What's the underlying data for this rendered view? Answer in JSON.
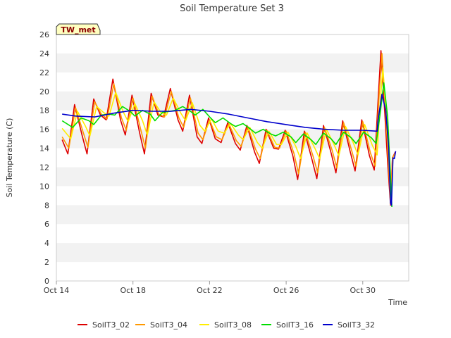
{
  "chart_data": {
    "type": "line",
    "title": "Soil Temperature Set 3",
    "xlabel": "Time",
    "ylabel": "Soil Temperature (C)",
    "station_label": "TW_met",
    "xlim": [
      0,
      18.4
    ],
    "ylim": [
      0,
      26
    ],
    "y_ticks": [
      0,
      2,
      4,
      6,
      8,
      10,
      12,
      14,
      16,
      18,
      20,
      22,
      24,
      26
    ],
    "x_ticks": [
      {
        "value": 0,
        "label": "Oct 14"
      },
      {
        "value": 4,
        "label": "Oct 18"
      },
      {
        "value": 8,
        "label": "Oct 22"
      },
      {
        "value": 12,
        "label": "Oct 26"
      },
      {
        "value": 16,
        "label": "Oct 30"
      }
    ],
    "grid": "alternating horizontal bands",
    "legend_position": "bottom",
    "series": [
      {
        "name": "SoilT3_02",
        "color": "#dd0000",
        "points": [
          [
            0.3,
            14.9
          ],
          [
            0.6,
            13.4
          ],
          [
            0.95,
            18.6
          ],
          [
            1.35,
            15.3
          ],
          [
            1.6,
            13.4
          ],
          [
            1.95,
            19.2
          ],
          [
            2.3,
            17.5
          ],
          [
            2.6,
            17.0
          ],
          [
            2.95,
            21.3
          ],
          [
            3.35,
            17.0
          ],
          [
            3.6,
            15.4
          ],
          [
            3.95,
            19.6
          ],
          [
            4.35,
            15.6
          ],
          [
            4.6,
            13.4
          ],
          [
            4.95,
            19.8
          ],
          [
            5.3,
            17.5
          ],
          [
            5.6,
            17.3
          ],
          [
            5.95,
            20.3
          ],
          [
            6.35,
            17.0
          ],
          [
            6.6,
            15.8
          ],
          [
            6.95,
            19.6
          ],
          [
            7.35,
            15.2
          ],
          [
            7.6,
            14.5
          ],
          [
            7.95,
            17.2
          ],
          [
            8.3,
            15.0
          ],
          [
            8.6,
            14.6
          ],
          [
            8.95,
            16.7
          ],
          [
            9.35,
            14.5
          ],
          [
            9.6,
            13.8
          ],
          [
            9.95,
            16.4
          ],
          [
            10.35,
            13.6
          ],
          [
            10.6,
            12.4
          ],
          [
            10.95,
            16.0
          ],
          [
            11.35,
            14.0
          ],
          [
            11.6,
            13.9
          ],
          [
            11.95,
            15.9
          ],
          [
            12.35,
            13.2
          ],
          [
            12.6,
            10.7
          ],
          [
            12.95,
            15.8
          ],
          [
            13.35,
            12.8
          ],
          [
            13.6,
            10.8
          ],
          [
            13.95,
            16.4
          ],
          [
            14.35,
            13.5
          ],
          [
            14.6,
            11.4
          ],
          [
            14.95,
            16.9
          ],
          [
            15.35,
            13.6
          ],
          [
            15.6,
            11.6
          ],
          [
            15.95,
            17.0
          ],
          [
            16.35,
            13.2
          ],
          [
            16.6,
            11.7
          ],
          [
            16.8,
            19.0
          ],
          [
            16.95,
            24.3
          ],
          [
            17.15,
            17.8
          ],
          [
            17.3,
            12.5
          ],
          [
            17.45,
            8.0
          ],
          [
            17.55,
            13.0
          ],
          [
            17.7,
            13.6
          ]
        ]
      },
      {
        "name": "SoilT3_04",
        "color": "#ff9900",
        "points": [
          [
            0.3,
            15.2
          ],
          [
            0.65,
            14.0
          ],
          [
            1.0,
            18.3
          ],
          [
            1.4,
            15.7
          ],
          [
            1.65,
            14.1
          ],
          [
            2.0,
            18.9
          ],
          [
            2.35,
            17.6
          ],
          [
            2.65,
            17.1
          ],
          [
            3.0,
            20.8
          ],
          [
            3.4,
            17.2
          ],
          [
            3.65,
            15.9
          ],
          [
            4.0,
            19.3
          ],
          [
            4.4,
            16.0
          ],
          [
            4.65,
            14.0
          ],
          [
            5.0,
            19.5
          ],
          [
            5.35,
            17.6
          ],
          [
            5.65,
            17.3
          ],
          [
            6.0,
            20.0
          ],
          [
            6.4,
            17.2
          ],
          [
            6.65,
            16.2
          ],
          [
            7.0,
            19.3
          ],
          [
            7.4,
            15.6
          ],
          [
            7.65,
            14.9
          ],
          [
            8.0,
            17.0
          ],
          [
            8.35,
            15.2
          ],
          [
            8.65,
            14.9
          ],
          [
            9.0,
            16.6
          ],
          [
            9.4,
            14.8
          ],
          [
            9.65,
            14.2
          ],
          [
            10.0,
            16.3
          ],
          [
            10.4,
            13.9
          ],
          [
            10.65,
            12.9
          ],
          [
            11.0,
            15.9
          ],
          [
            11.4,
            14.1
          ],
          [
            11.65,
            14.0
          ],
          [
            12.0,
            15.8
          ],
          [
            12.4,
            13.5
          ],
          [
            12.65,
            11.3
          ],
          [
            13.0,
            15.7
          ],
          [
            13.4,
            13.2
          ],
          [
            13.65,
            11.4
          ],
          [
            14.0,
            16.2
          ],
          [
            14.4,
            13.8
          ],
          [
            14.65,
            11.9
          ],
          [
            15.0,
            16.7
          ],
          [
            15.4,
            13.9
          ],
          [
            15.65,
            12.1
          ],
          [
            16.0,
            16.8
          ],
          [
            16.4,
            13.5
          ],
          [
            16.65,
            12.1
          ],
          [
            16.85,
            19.5
          ],
          [
            17.0,
            24.0
          ],
          [
            17.2,
            17.6
          ],
          [
            17.35,
            12.4
          ],
          [
            17.45,
            8.1
          ],
          [
            17.55,
            13.0
          ],
          [
            17.7,
            13.5
          ]
        ]
      },
      {
        "name": "SoilT3_08",
        "color": "#ffee00",
        "points": [
          [
            0.3,
            16.1
          ],
          [
            0.75,
            15.0
          ],
          [
            1.1,
            17.9
          ],
          [
            1.5,
            16.4
          ],
          [
            1.75,
            15.3
          ],
          [
            2.1,
            18.4
          ],
          [
            2.45,
            17.8
          ],
          [
            2.75,
            17.4
          ],
          [
            3.1,
            19.9
          ],
          [
            3.5,
            17.8
          ],
          [
            3.75,
            16.8
          ],
          [
            4.1,
            18.7
          ],
          [
            4.5,
            16.9
          ],
          [
            4.75,
            15.4
          ],
          [
            5.1,
            18.9
          ],
          [
            5.45,
            17.8
          ],
          [
            5.75,
            17.5
          ],
          [
            6.1,
            19.3
          ],
          [
            6.5,
            17.7
          ],
          [
            6.75,
            16.9
          ],
          [
            7.1,
            18.8
          ],
          [
            7.5,
            16.4
          ],
          [
            7.75,
            15.8
          ],
          [
            8.1,
            17.1
          ],
          [
            8.45,
            15.8
          ],
          [
            8.75,
            15.6
          ],
          [
            9.1,
            16.6
          ],
          [
            9.5,
            15.4
          ],
          [
            9.75,
            14.9
          ],
          [
            10.1,
            16.2
          ],
          [
            10.5,
            14.6
          ],
          [
            10.75,
            14.0
          ],
          [
            11.1,
            15.8
          ],
          [
            11.5,
            14.4
          ],
          [
            11.75,
            14.4
          ],
          [
            12.1,
            15.7
          ],
          [
            12.5,
            14.2
          ],
          [
            12.75,
            12.9
          ],
          [
            13.1,
            15.6
          ],
          [
            13.5,
            14.0
          ],
          [
            13.75,
            12.9
          ],
          [
            14.1,
            16.0
          ],
          [
            14.5,
            14.4
          ],
          [
            14.75,
            13.2
          ],
          [
            15.1,
            16.3
          ],
          [
            15.5,
            14.6
          ],
          [
            15.75,
            13.3
          ],
          [
            16.1,
            16.5
          ],
          [
            16.5,
            14.3
          ],
          [
            16.75,
            13.3
          ],
          [
            16.9,
            18.5
          ],
          [
            17.05,
            22.5
          ],
          [
            17.25,
            16.8
          ],
          [
            17.4,
            11.0
          ],
          [
            17.5,
            8.3
          ]
        ]
      },
      {
        "name": "SoilT3_16",
        "color": "#00dd00",
        "points": [
          [
            0.3,
            16.9
          ],
          [
            0.85,
            16.2
          ],
          [
            1.3,
            17.2
          ],
          [
            1.7,
            16.9
          ],
          [
            1.95,
            16.5
          ],
          [
            2.35,
            17.5
          ],
          [
            2.75,
            17.6
          ],
          [
            3.05,
            17.5
          ],
          [
            3.45,
            18.4
          ],
          [
            3.85,
            17.9
          ],
          [
            4.1,
            17.4
          ],
          [
            4.5,
            18.0
          ],
          [
            4.9,
            17.6
          ],
          [
            5.15,
            16.9
          ],
          [
            5.55,
            17.8
          ],
          [
            5.95,
            17.9
          ],
          [
            6.2,
            18.0
          ],
          [
            6.6,
            18.4
          ],
          [
            7.0,
            17.9
          ],
          [
            7.25,
            17.5
          ],
          [
            7.65,
            18.1
          ],
          [
            8.05,
            17.2
          ],
          [
            8.3,
            16.7
          ],
          [
            8.7,
            17.2
          ],
          [
            9.1,
            16.6
          ],
          [
            9.35,
            16.3
          ],
          [
            9.75,
            16.6
          ],
          [
            10.15,
            16.0
          ],
          [
            10.4,
            15.6
          ],
          [
            10.8,
            16.0
          ],
          [
            11.2,
            15.5
          ],
          [
            11.45,
            15.3
          ],
          [
            11.85,
            15.7
          ],
          [
            12.25,
            15.2
          ],
          [
            12.5,
            14.6
          ],
          [
            12.9,
            15.5
          ],
          [
            13.3,
            14.9
          ],
          [
            13.55,
            14.4
          ],
          [
            13.95,
            15.6
          ],
          [
            14.35,
            15.0
          ],
          [
            14.6,
            14.4
          ],
          [
            15.0,
            15.7
          ],
          [
            15.4,
            15.1
          ],
          [
            15.65,
            14.5
          ],
          [
            16.05,
            15.7
          ],
          [
            16.45,
            15.1
          ],
          [
            16.7,
            14.5
          ],
          [
            16.9,
            17.5
          ],
          [
            17.1,
            20.9
          ],
          [
            17.3,
            17.3
          ],
          [
            17.45,
            11.0
          ],
          [
            17.52,
            7.8
          ]
        ]
      },
      {
        "name": "SoilT3_32",
        "color": "#0000cc",
        "points": [
          [
            0.3,
            17.6
          ],
          [
            1.0,
            17.4
          ],
          [
            2.0,
            17.3
          ],
          [
            3.0,
            17.7
          ],
          [
            4.0,
            18.0
          ],
          [
            5.0,
            17.9
          ],
          [
            6.0,
            17.9
          ],
          [
            7.0,
            18.1
          ],
          [
            8.0,
            17.9
          ],
          [
            9.0,
            17.6
          ],
          [
            10.0,
            17.2
          ],
          [
            11.0,
            16.8
          ],
          [
            12.0,
            16.5
          ],
          [
            13.0,
            16.2
          ],
          [
            14.0,
            16.0
          ],
          [
            15.0,
            15.9
          ],
          [
            16.0,
            15.9
          ],
          [
            16.75,
            15.8
          ],
          [
            16.8,
            17.0
          ],
          [
            17.0,
            19.7
          ],
          [
            17.2,
            18.0
          ],
          [
            17.35,
            14.0
          ],
          [
            17.45,
            8.2
          ],
          [
            17.5,
            8.0
          ],
          [
            17.58,
            13.0
          ],
          [
            17.65,
            12.9
          ],
          [
            17.72,
            13.7
          ]
        ]
      }
    ]
  }
}
